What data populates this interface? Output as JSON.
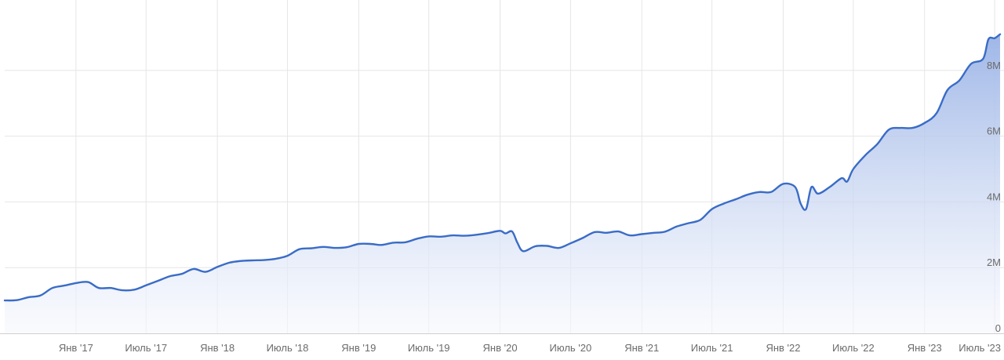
{
  "chart_data": {
    "type": "area",
    "title": "",
    "xlabel": "",
    "ylabel": "",
    "x_ticks": [
      {
        "date": "2017-01-01",
        "label": "Янв '17"
      },
      {
        "date": "2017-07-01",
        "label": "Июль '17"
      },
      {
        "date": "2018-01-01",
        "label": "Янв '18"
      },
      {
        "date": "2018-07-01",
        "label": "Июль '18"
      },
      {
        "date": "2019-01-01",
        "label": "Янв '19"
      },
      {
        "date": "2019-07-01",
        "label": "Июль '19"
      },
      {
        "date": "2020-01-01",
        "label": "Янв '20"
      },
      {
        "date": "2020-07-01",
        "label": "Июль '20"
      },
      {
        "date": "2021-01-01",
        "label": "Янв '21"
      },
      {
        "date": "2021-07-01",
        "label": "Июль '21"
      },
      {
        "date": "2022-01-01",
        "label": "Янв '22"
      },
      {
        "date": "2022-07-01",
        "label": "Июль '22"
      },
      {
        "date": "2023-01-01",
        "label": "Янв '23"
      },
      {
        "date": "2023-07-01",
        "label": "Июль '23"
      }
    ],
    "y_ticks": [
      {
        "value": 0,
        "label": "0"
      },
      {
        "value": 2000000,
        "label": "2M"
      },
      {
        "value": 4000000,
        "label": "4M"
      },
      {
        "value": 6000000,
        "label": "6M"
      },
      {
        "value": 8000000,
        "label": "8M"
      }
    ],
    "xlim": [
      "2016-07-01",
      "2023-07-15"
    ],
    "ylim": [
      0,
      10000000
    ],
    "grid": true,
    "colors": {
      "line": "#3a6cc6",
      "fill_top": "#9ab3e6",
      "fill_bottom": "#f6f8fd"
    },
    "series": [
      {
        "points": [
          [
            "2016-07-01",
            1000000
          ],
          [
            "2016-08-01",
            1010000
          ],
          [
            "2016-09-01",
            1100000
          ],
          [
            "2016-10-01",
            1150000
          ],
          [
            "2016-11-01",
            1380000
          ],
          [
            "2016-12-01",
            1450000
          ],
          [
            "2017-01-01",
            1530000
          ],
          [
            "2017-02-01",
            1560000
          ],
          [
            "2017-03-01",
            1380000
          ],
          [
            "2017-04-01",
            1380000
          ],
          [
            "2017-05-01",
            1310000
          ],
          [
            "2017-06-01",
            1330000
          ],
          [
            "2017-07-01",
            1460000
          ],
          [
            "2017-08-01",
            1600000
          ],
          [
            "2017-09-01",
            1740000
          ],
          [
            "2017-10-01",
            1810000
          ],
          [
            "2017-11-01",
            1960000
          ],
          [
            "2017-12-01",
            1870000
          ],
          [
            "2018-01-01",
            2020000
          ],
          [
            "2018-02-01",
            2150000
          ],
          [
            "2018-03-01",
            2200000
          ],
          [
            "2018-04-01",
            2220000
          ],
          [
            "2018-05-01",
            2230000
          ],
          [
            "2018-06-01",
            2270000
          ],
          [
            "2018-07-01",
            2360000
          ],
          [
            "2018-08-01",
            2560000
          ],
          [
            "2018-09-01",
            2590000
          ],
          [
            "2018-10-01",
            2630000
          ],
          [
            "2018-11-01",
            2600000
          ],
          [
            "2018-12-01",
            2620000
          ],
          [
            "2019-01-01",
            2720000
          ],
          [
            "2019-02-01",
            2720000
          ],
          [
            "2019-03-01",
            2690000
          ],
          [
            "2019-04-01",
            2760000
          ],
          [
            "2019-05-01",
            2770000
          ],
          [
            "2019-06-01",
            2880000
          ],
          [
            "2019-07-01",
            2950000
          ],
          [
            "2019-08-01",
            2940000
          ],
          [
            "2019-09-01",
            2980000
          ],
          [
            "2019-10-01",
            2970000
          ],
          [
            "2019-11-01",
            3000000
          ],
          [
            "2019-12-01",
            3050000
          ],
          [
            "2020-01-01",
            3120000
          ],
          [
            "2020-01-15",
            3040000
          ],
          [
            "2020-02-01",
            3100000
          ],
          [
            "2020-02-15",
            2750000
          ],
          [
            "2020-03-01",
            2500000
          ],
          [
            "2020-04-01",
            2650000
          ],
          [
            "2020-05-01",
            2660000
          ],
          [
            "2020-06-01",
            2600000
          ],
          [
            "2020-07-01",
            2740000
          ],
          [
            "2020-08-01",
            2900000
          ],
          [
            "2020-09-01",
            3080000
          ],
          [
            "2020-10-01",
            3060000
          ],
          [
            "2020-11-01",
            3100000
          ],
          [
            "2020-12-01",
            2980000
          ],
          [
            "2021-01-01",
            3020000
          ],
          [
            "2021-02-01",
            3060000
          ],
          [
            "2021-03-01",
            3090000
          ],
          [
            "2021-04-01",
            3250000
          ],
          [
            "2021-05-01",
            3350000
          ],
          [
            "2021-06-01",
            3450000
          ],
          [
            "2021-07-01",
            3780000
          ],
          [
            "2021-08-01",
            3950000
          ],
          [
            "2021-09-01",
            4080000
          ],
          [
            "2021-10-01",
            4220000
          ],
          [
            "2021-11-01",
            4300000
          ],
          [
            "2021-12-01",
            4300000
          ],
          [
            "2022-01-01",
            4550000
          ],
          [
            "2022-02-01",
            4450000
          ],
          [
            "2022-02-15",
            3950000
          ],
          [
            "2022-03-01",
            3780000
          ],
          [
            "2022-03-15",
            4450000
          ],
          [
            "2022-04-01",
            4250000
          ],
          [
            "2022-05-01",
            4450000
          ],
          [
            "2022-06-01",
            4720000
          ],
          [
            "2022-06-15",
            4620000
          ],
          [
            "2022-07-01",
            5000000
          ],
          [
            "2022-08-01",
            5420000
          ],
          [
            "2022-09-01",
            5760000
          ],
          [
            "2022-10-01",
            6200000
          ],
          [
            "2022-11-01",
            6250000
          ],
          [
            "2022-12-01",
            6250000
          ],
          [
            "2023-01-01",
            6400000
          ],
          [
            "2023-02-01",
            6700000
          ],
          [
            "2023-03-01",
            7400000
          ],
          [
            "2023-04-01",
            7700000
          ],
          [
            "2023-05-01",
            8200000
          ],
          [
            "2023-06-01",
            8350000
          ],
          [
            "2023-06-15",
            8950000
          ],
          [
            "2023-07-01",
            8980000
          ],
          [
            "2023-07-15",
            9100000
          ]
        ]
      }
    ]
  }
}
